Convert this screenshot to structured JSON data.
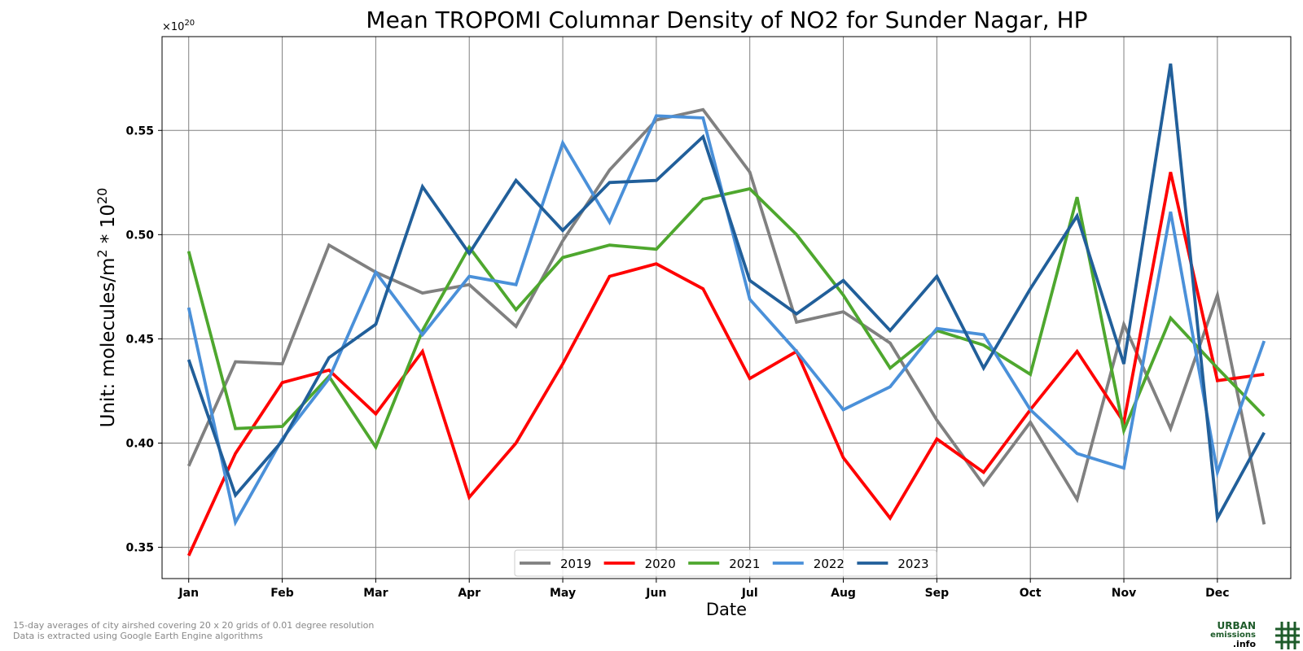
{
  "chart_data": {
    "type": "line",
    "title": "Mean TROPOMI Columnar Density of NO2 for Sunder Nagar, HP",
    "xlabel": "Date",
    "ylabel_text": "Unit: molecules/m",
    "ylabel_sup1": "2",
    "ylabel_mid": " * 10",
    "ylabel_sup2": "20",
    "offset_base": "×10",
    "offset_exp": "20",
    "ylim": [
      0.335,
      0.595
    ],
    "yticks": [
      0.35,
      0.4,
      0.45,
      0.5,
      0.55
    ],
    "ytick_labels": [
      "0.35",
      "0.40",
      "0.45",
      "0.50",
      "0.55"
    ],
    "xlim": [
      -0.57,
      23.57
    ],
    "xticks": [
      0,
      2,
      4,
      6,
      8,
      10,
      12,
      14,
      16,
      18,
      20,
      22
    ],
    "xtick_labels": [
      "Jan",
      "Feb",
      "Mar",
      "Apr",
      "May",
      "Jun",
      "Jul",
      "Aug",
      "Sep",
      "Oct",
      "Nov",
      "Dec"
    ],
    "grid": true,
    "legend_position": "bottom-center",
    "x": [
      0,
      1,
      2,
      3,
      4,
      5,
      6,
      7,
      8,
      9,
      10,
      11,
      12,
      13,
      14,
      15,
      16,
      17,
      18,
      19,
      20,
      21,
      22,
      23
    ],
    "series": [
      {
        "name": "2019",
        "color": "#808080",
        "values": [
          0.389,
          0.439,
          0.438,
          0.495,
          0.482,
          0.472,
          0.476,
          0.456,
          0.497,
          0.531,
          0.555,
          0.56,
          0.53,
          0.458,
          0.463,
          0.448,
          0.411,
          0.38,
          0.41,
          0.373,
          0.457,
          0.407,
          0.471,
          0.361
        ]
      },
      {
        "name": "2020",
        "color": "#ff0000",
        "values": [
          0.346,
          0.395,
          0.429,
          0.435,
          0.414,
          0.444,
          0.374,
          0.4,
          0.438,
          0.48,
          0.486,
          0.474,
          0.431,
          0.444,
          0.393,
          0.364,
          0.402,
          0.386,
          0.416,
          0.444,
          0.41,
          0.53,
          0.43,
          0.433
        ]
      },
      {
        "name": "2021",
        "color": "#4ea72e",
        "values": [
          0.492,
          0.407,
          0.408,
          0.432,
          0.398,
          0.454,
          0.494,
          0.464,
          0.489,
          0.495,
          0.493,
          0.517,
          0.522,
          0.5,
          0.471,
          0.436,
          0.454,
          0.447,
          0.433,
          0.518,
          0.406,
          0.46,
          0.436,
          0.413
        ]
      },
      {
        "name": "2022",
        "color": "#4a90d9",
        "values": [
          0.465,
          0.362,
          0.402,
          0.431,
          0.482,
          0.452,
          0.48,
          0.476,
          0.544,
          0.506,
          0.557,
          0.556,
          0.469,
          0.444,
          0.416,
          0.427,
          0.455,
          0.452,
          0.416,
          0.395,
          0.388,
          0.511,
          0.386,
          0.449
        ]
      },
      {
        "name": "2023",
        "color": "#215f9a",
        "values": [
          0.44,
          0.375,
          0.401,
          0.441,
          0.457,
          0.523,
          0.491,
          0.526,
          0.502,
          0.525,
          0.526,
          0.547,
          0.478,
          0.462,
          0.478,
          0.454,
          0.48,
          0.436,
          0.474,
          0.509,
          0.438,
          0.582,
          0.364,
          0.405
        ]
      }
    ]
  },
  "footnote": {
    "line1": "15-day averages of city airshed covering 20 x 20 grids of 0.01 degree resolution",
    "line2": "Data is extracted using Google Earth Engine algorithms"
  },
  "logo": {
    "line1": "URBAN",
    "line2": "emissions",
    "line3": ".info"
  }
}
